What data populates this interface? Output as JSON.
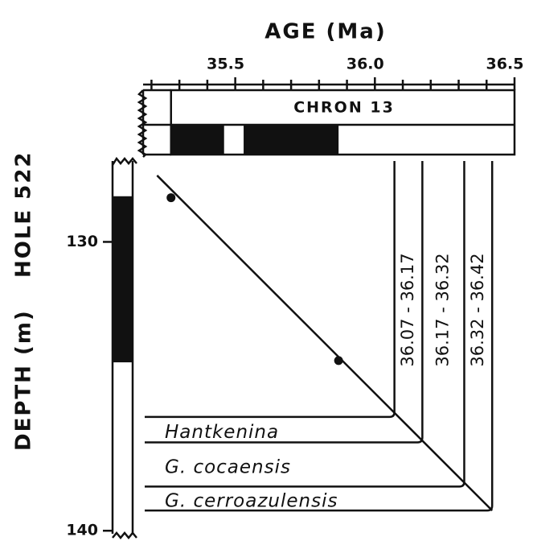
{
  "chart_data": {
    "type": "line",
    "x_label": "AGE (Ma)",
    "y_label": "DEPTH (m)",
    "hole": "HOLE 522",
    "chron_label": "CHRON 13",
    "xlim": [
      35.17,
      36.5
    ],
    "xticks": [
      35.5,
      {
        "value": 36,
        "label": "36.0"
      },
      36.5
    ],
    "xminor": [
      35.2,
      35.3,
      35.4,
      35.6,
      35.7,
      35.8,
      35.9,
      36.1,
      36.2,
      36.3,
      36.4
    ],
    "ylim": [
      127.2,
      140.3
    ],
    "yticks": [
      130,
      140
    ],
    "chron_start": 35.27,
    "chron_normal": [
      {
        "start": 35.27,
        "end": 35.46
      },
      {
        "start": 35.53,
        "end": 35.87
      }
    ],
    "depth_normal": [
      {
        "start": 128.42,
        "end": 134.17
      }
    ],
    "line": {
      "x": [
        35.22,
        36.42
      ],
      "values": [
        127.7,
        139.3
      ]
    },
    "points": {
      "x": [
        35.27,
        35.87
      ],
      "values": [
        128.47,
        134.11
      ]
    },
    "horizons": [
      {
        "age": 36.07,
        "depth": 136.06
      },
      {
        "age": 36.17,
        "depth": 136.94
      },
      {
        "age": 36.32,
        "depth": 138.47
      },
      {
        "age": 36.42,
        "depth": 139.3
      }
    ],
    "taxa": [
      {
        "name": "Hantkenina",
        "range": "36.07 - 36.17"
      },
      {
        "name": "G. cocaensis",
        "range": "36.17 - 36.32"
      },
      {
        "name": "G. cerroazulensis",
        "range": "36.32 - 36.42"
      }
    ]
  }
}
